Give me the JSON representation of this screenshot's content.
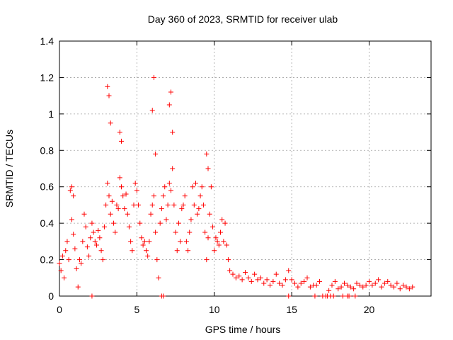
{
  "chart_data": {
    "type": "scatter",
    "title": "Day 360 of 2023, SRMTID for receiver ulab",
    "xlabel": "GPS time / hours",
    "ylabel": "SRMTID / TECUs",
    "xlim": [
      0,
      24
    ],
    "ylim": [
      0,
      1.4
    ],
    "xticks": [
      0,
      5,
      10,
      15,
      20
    ],
    "yticks": [
      0,
      0.2,
      0.4,
      0.6,
      0.8,
      1,
      1.2,
      1.4
    ],
    "xtick_labels": [
      "0",
      "5",
      "10",
      "15",
      "20"
    ],
    "ytick_labels": [
      "0",
      "0.2",
      "0.4",
      "0.6",
      "0.8",
      "1",
      "1.2",
      "1.4"
    ],
    "grid": true,
    "marker": "plus",
    "series": [
      {
        "name": "SRMTID",
        "color": "#ff0000",
        "x": [
          0.0,
          0.1,
          0.2,
          0.3,
          0.4,
          0.5,
          0.6,
          0.7,
          0.8,
          0.9,
          1.0,
          1.1,
          1.2,
          1.3,
          1.4,
          1.5,
          1.6,
          1.7,
          1.8,
          1.9,
          2.0,
          2.1,
          2.2,
          2.3,
          2.4,
          2.5,
          2.6,
          2.7,
          2.8,
          2.9,
          3.0,
          3.1,
          3.2,
          3.3,
          3.4,
          3.5,
          3.6,
          3.7,
          3.8,
          3.9,
          4.0,
          4.1,
          4.2,
          4.3,
          4.4,
          4.5,
          4.6,
          4.7,
          4.8,
          4.9,
          5.0,
          5.1,
          5.2,
          5.3,
          5.4,
          5.5,
          5.6,
          5.7,
          5.8,
          5.9,
          6.0,
          6.1,
          6.2,
          6.3,
          6.4,
          6.5,
          6.6,
          6.7,
          6.8,
          6.9,
          7.0,
          7.1,
          7.2,
          7.3,
          7.4,
          7.5,
          7.6,
          7.7,
          7.8,
          7.9,
          8.0,
          8.1,
          8.2,
          8.3,
          8.4,
          8.5,
          8.6,
          8.7,
          8.8,
          8.9,
          9.0,
          9.1,
          9.2,
          9.3,
          9.4,
          9.5,
          9.6,
          9.7,
          9.8,
          9.9,
          10.0,
          10.1,
          10.2,
          10.3,
          10.4,
          10.5,
          10.6,
          10.7,
          10.8,
          10.9,
          11.0,
          11.2,
          11.4,
          11.6,
          11.8,
          12.0,
          12.2,
          12.4,
          12.6,
          12.8,
          13.0,
          13.2,
          13.4,
          13.6,
          13.8,
          14.0,
          14.2,
          14.4,
          14.6,
          14.8,
          15.0,
          15.2,
          15.4,
          15.6,
          15.8,
          16.0,
          16.2,
          16.4,
          16.6,
          16.8,
          17.0,
          17.2,
          17.4,
          17.6,
          17.8,
          18.0,
          18.2,
          18.4,
          18.6,
          18.8,
          19.0,
          19.2,
          19.4,
          19.6,
          19.8,
          20.0,
          20.2,
          20.4,
          20.6,
          20.8,
          21.0,
          21.2,
          21.4,
          21.6,
          21.8,
          22.0,
          22.2,
          22.4,
          22.6,
          22.8,
          3.1,
          3.2,
          3.3,
          3.9,
          4.0,
          6.0,
          6.1,
          6.2,
          7.1,
          7.2,
          7.3,
          0.8,
          0.9,
          9.5,
          9.6,
          2.1,
          6.6,
          6.7,
          14.8,
          16.5,
          17.3,
          17.5,
          17.7,
          18.3,
          18.6,
          18.7,
          19.1
        ],
        "y": [
          0.18,
          0.14,
          0.22,
          0.1,
          0.25,
          0.3,
          0.2,
          0.58,
          0.42,
          0.34,
          0.26,
          0.15,
          0.05,
          0.2,
          0.18,
          0.3,
          0.45,
          0.38,
          0.27,
          0.22,
          0.32,
          0.4,
          0.35,
          0.3,
          0.28,
          0.36,
          0.32,
          0.25,
          0.2,
          0.38,
          0.5,
          0.62,
          0.55,
          0.45,
          0.52,
          0.4,
          0.35,
          0.5,
          0.48,
          0.65,
          0.6,
          0.55,
          0.48,
          0.56,
          0.45,
          0.38,
          0.3,
          0.25,
          0.5,
          0.62,
          0.58,
          0.5,
          0.4,
          0.32,
          0.28,
          0.3,
          0.25,
          0.22,
          0.3,
          0.45,
          0.5,
          0.55,
          0.35,
          0.2,
          0.1,
          0.4,
          0.48,
          0.55,
          0.6,
          0.42,
          0.5,
          0.62,
          0.58,
          0.7,
          0.5,
          0.35,
          0.25,
          0.4,
          0.3,
          0.48,
          0.5,
          0.55,
          0.3,
          0.25,
          0.35,
          0.42,
          0.6,
          0.5,
          0.62,
          0.45,
          0.48,
          0.55,
          0.6,
          0.5,
          0.35,
          0.2,
          0.32,
          0.45,
          0.6,
          0.38,
          0.25,
          0.32,
          0.3,
          0.28,
          0.35,
          0.42,
          0.3,
          0.4,
          0.28,
          0.2,
          0.14,
          0.12,
          0.1,
          0.11,
          0.09,
          0.13,
          0.1,
          0.08,
          0.12,
          0.09,
          0.1,
          0.07,
          0.09,
          0.06,
          0.08,
          0.12,
          0.07,
          0.06,
          0.09,
          0.14,
          0.09,
          0.07,
          0.05,
          0.07,
          0.08,
          0.1,
          0.05,
          0.06,
          0.06,
          0.08,
          0.0,
          0.0,
          0.03,
          0.06,
          0.08,
          0.04,
          0.05,
          0.07,
          0.06,
          0.05,
          0.04,
          0.07,
          0.06,
          0.05,
          0.06,
          0.08,
          0.06,
          0.07,
          0.09,
          0.05,
          0.07,
          0.08,
          0.06,
          0.05,
          0.07,
          0.04,
          0.06,
          0.05,
          0.04,
          0.05,
          1.15,
          1.1,
          0.95,
          0.9,
          0.85,
          1.02,
          1.2,
          0.78,
          1.05,
          1.12,
          0.9,
          0.6,
          0.55,
          0.78,
          0.7,
          0.0,
          0.0,
          0.0,
          0.0,
          0.0,
          0.0,
          0.0,
          0.0,
          0.0,
          0.0,
          0.0,
          0.0
        ]
      }
    ]
  }
}
